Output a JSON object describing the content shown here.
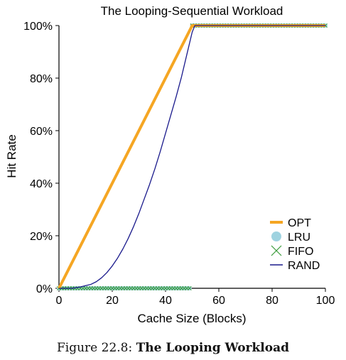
{
  "chart_data": {
    "type": "line",
    "title": "The Looping-Sequential Workload",
    "xlabel": "Cache Size (Blocks)",
    "ylabel": "Hit Rate",
    "xlim": [
      0,
      100
    ],
    "ylim": [
      0,
      100
    ],
    "x_ticks": [
      "0",
      "20",
      "40",
      "60",
      "80",
      "100"
    ],
    "y_ticks": [
      "0%",
      "20%",
      "40%",
      "60%",
      "80%",
      "100%"
    ],
    "legend_position": "bottom-right",
    "series": [
      {
        "name": "OPT",
        "style": "thick-line",
        "color": "#F5A623",
        "x": [
          0,
          50,
          51,
          100
        ],
        "y": [
          0,
          100,
          100,
          100
        ]
      },
      {
        "name": "LRU",
        "style": "dot",
        "color": "#9FD3E0",
        "x": [
          0,
          1,
          2,
          3,
          4,
          5,
          6,
          7,
          8,
          9,
          10,
          11,
          12,
          13,
          14,
          15,
          16,
          17,
          18,
          19,
          20,
          21,
          22,
          23,
          24,
          25,
          26,
          27,
          28,
          29,
          30,
          31,
          32,
          33,
          34,
          35,
          36,
          37,
          38,
          39,
          40,
          41,
          42,
          43,
          44,
          45,
          46,
          47,
          48,
          49,
          50,
          51,
          52,
          53,
          54,
          55,
          56,
          57,
          58,
          59,
          60,
          61,
          62,
          63,
          64,
          65,
          66,
          67,
          68,
          69,
          70,
          71,
          72,
          73,
          74,
          75,
          76,
          77,
          78,
          79,
          80,
          81,
          82,
          83,
          84,
          85,
          86,
          87,
          88,
          89,
          90,
          91,
          92,
          93,
          94,
          95,
          96,
          97,
          98,
          99,
          100
        ],
        "y": [
          0,
          0,
          0,
          0,
          0,
          0,
          0,
          0,
          0,
          0,
          0,
          0,
          0,
          0,
          0,
          0,
          0,
          0,
          0,
          0,
          0,
          0,
          0,
          0,
          0,
          0,
          0,
          0,
          0,
          0,
          0,
          0,
          0,
          0,
          0,
          0,
          0,
          0,
          0,
          0,
          0,
          0,
          0,
          0,
          0,
          0,
          0,
          0,
          0,
          0,
          100,
          100,
          100,
          100,
          100,
          100,
          100,
          100,
          100,
          100,
          100,
          100,
          100,
          100,
          100,
          100,
          100,
          100,
          100,
          100,
          100,
          100,
          100,
          100,
          100,
          100,
          100,
          100,
          100,
          100,
          100,
          100,
          100,
          100,
          100,
          100,
          100,
          100,
          100,
          100,
          100,
          100,
          100,
          100,
          100,
          100,
          100,
          100,
          100,
          100,
          100
        ]
      },
      {
        "name": "FIFO",
        "style": "x-marker",
        "color": "#3A9A3A",
        "x": [
          0,
          1,
          2,
          3,
          4,
          5,
          6,
          7,
          8,
          9,
          10,
          11,
          12,
          13,
          14,
          15,
          16,
          17,
          18,
          19,
          20,
          21,
          22,
          23,
          24,
          25,
          26,
          27,
          28,
          29,
          30,
          31,
          32,
          33,
          34,
          35,
          36,
          37,
          38,
          39,
          40,
          41,
          42,
          43,
          44,
          45,
          46,
          47,
          48,
          49,
          50,
          51,
          52,
          53,
          54,
          55,
          56,
          57,
          58,
          59,
          60,
          61,
          62,
          63,
          64,
          65,
          66,
          67,
          68,
          69,
          70,
          71,
          72,
          73,
          74,
          75,
          76,
          77,
          78,
          79,
          80,
          81,
          82,
          83,
          84,
          85,
          86,
          87,
          88,
          89,
          90,
          91,
          92,
          93,
          94,
          95,
          96,
          97,
          98,
          99,
          100
        ],
        "y": [
          0,
          0,
          0,
          0,
          0,
          0,
          0,
          0,
          0,
          0,
          0,
          0,
          0,
          0,
          0,
          0,
          0,
          0,
          0,
          0,
          0,
          0,
          0,
          0,
          0,
          0,
          0,
          0,
          0,
          0,
          0,
          0,
          0,
          0,
          0,
          0,
          0,
          0,
          0,
          0,
          0,
          0,
          0,
          0,
          0,
          0,
          0,
          0,
          0,
          0,
          100,
          100,
          100,
          100,
          100,
          100,
          100,
          100,
          100,
          100,
          100,
          100,
          100,
          100,
          100,
          100,
          100,
          100,
          100,
          100,
          100,
          100,
          100,
          100,
          100,
          100,
          100,
          100,
          100,
          100,
          100,
          100,
          100,
          100,
          100,
          100,
          100,
          100,
          100,
          100,
          100,
          100,
          100,
          100,
          100,
          100,
          100,
          100,
          100,
          100,
          100
        ]
      },
      {
        "name": "RAND",
        "style": "thin-line",
        "color": "#1A1A8C",
        "x": [
          0,
          5,
          8,
          10,
          12,
          14,
          16,
          18,
          20,
          22,
          24,
          26,
          28,
          30,
          32,
          34,
          36,
          38,
          40,
          42,
          44,
          46,
          48,
          50,
          51,
          55,
          60,
          70,
          80,
          90,
          100
        ],
        "y": [
          0,
          0,
          0.5,
          1,
          1.5,
          2.5,
          4,
          6,
          8.5,
          11.5,
          15,
          19,
          23.5,
          28.5,
          34,
          39.5,
          45.5,
          52,
          59,
          66,
          73,
          80.5,
          89,
          97.5,
          100,
          100,
          100,
          100,
          100,
          100,
          100
        ]
      }
    ]
  },
  "caption": {
    "prefix": "Figure 22.8:",
    "title": "The Looping Workload"
  }
}
